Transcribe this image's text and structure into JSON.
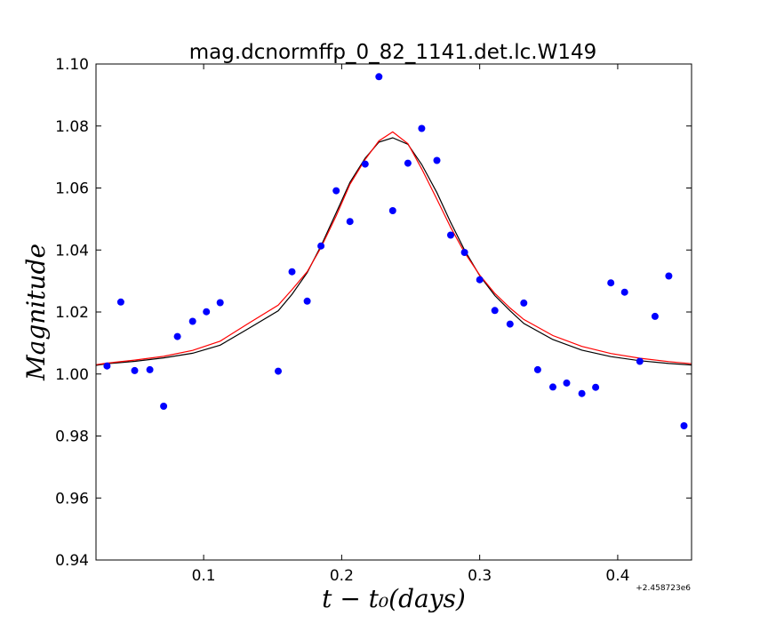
{
  "chart_data": {
    "type": "scatter",
    "title": "mag.dcnormffp_0_82_1141.det.lc.W149",
    "xlabel": "t − t₀(days)",
    "ylabel": "Magnitude",
    "x_offset_label": "+2.458723e6",
    "xlim": [
      0.022,
      0.4535
    ],
    "ylim": [
      0.94,
      1.1
    ],
    "xticks": [
      0.1,
      0.2,
      0.3,
      0.4
    ],
    "xtick_labels": [
      "0.1",
      "0.2",
      "0.3",
      "0.4"
    ],
    "yticks": [
      0.94,
      0.96,
      0.98,
      1.0,
      1.02,
      1.04,
      1.06,
      1.08,
      1.1
    ],
    "ytick_labels": [
      "0.94",
      "0.96",
      "0.98",
      "1.00",
      "1.02",
      "1.04",
      "1.06",
      "1.08",
      "1.10"
    ],
    "grid": false,
    "points": {
      "color": "#0000ff",
      "x": [
        0.03,
        0.04,
        0.05,
        0.061,
        0.071,
        0.081,
        0.092,
        0.102,
        0.112,
        0.154,
        0.164,
        0.175,
        0.185,
        0.196,
        0.206,
        0.217,
        0.227,
        0.237,
        0.248,
        0.258,
        0.269,
        0.279,
        0.289,
        0.3,
        0.311,
        0.322,
        0.332,
        0.342,
        0.353,
        0.363,
        0.374,
        0.384,
        0.395,
        0.405,
        0.416,
        0.427,
        0.437,
        0.448
      ],
      "y": [
        1.0026,
        1.0232,
        1.0011,
        1.0014,
        0.9896,
        1.0121,
        1.017,
        1.0201,
        1.023,
        1.0009,
        1.033,
        1.0235,
        1.0413,
        1.0591,
        1.0492,
        1.0677,
        1.0959,
        1.0527,
        1.068,
        1.0792,
        1.0689,
        1.0448,
        1.0392,
        1.0304,
        1.0205,
        1.0161,
        1.0229,
        1.0014,
        0.9958,
        0.9971,
        0.9937,
        0.9957,
        1.0294,
        1.0264,
        1.0041,
        1.0186,
        1.0316,
        0.9833
      ]
    },
    "series": [
      {
        "color": "#000000",
        "x": [
          0.022,
          0.03,
          0.05,
          0.071,
          0.092,
          0.112,
          0.133,
          0.154,
          0.164,
          0.175,
          0.185,
          0.196,
          0.206,
          0.217,
          0.227,
          0.237,
          0.248,
          0.258,
          0.269,
          0.279,
          0.289,
          0.3,
          0.311,
          0.322,
          0.332,
          0.353,
          0.374,
          0.395,
          0.416,
          0.437,
          0.4535
        ],
        "y": [
          1.0028,
          1.0033,
          1.0041,
          1.0052,
          1.0067,
          1.0093,
          1.0148,
          1.0204,
          1.0257,
          1.0327,
          1.0413,
          1.052,
          1.0618,
          1.0696,
          1.0748,
          1.0762,
          1.0741,
          1.0676,
          1.0585,
          1.0489,
          1.04,
          1.0317,
          1.0253,
          1.0204,
          1.0163,
          1.0111,
          1.0077,
          1.0056,
          1.0043,
          1.0034,
          1.0029
        ]
      },
      {
        "color": "#ff0000",
        "x": [
          0.022,
          0.03,
          0.05,
          0.071,
          0.092,
          0.112,
          0.133,
          0.154,
          0.164,
          0.175,
          0.185,
          0.196,
          0.206,
          0.217,
          0.227,
          0.237,
          0.248,
          0.258,
          0.269,
          0.279,
          0.289,
          0.3,
          0.311,
          0.322,
          0.332,
          0.353,
          0.374,
          0.395,
          0.416,
          0.437,
          0.4535
        ],
        "y": [
          1.003,
          1.0035,
          1.0045,
          1.0057,
          1.0076,
          1.0106,
          1.0165,
          1.0222,
          1.0272,
          1.033,
          1.0408,
          1.051,
          1.0612,
          1.0692,
          1.0752,
          1.0781,
          1.0743,
          1.0662,
          1.0564,
          1.0473,
          1.0392,
          1.0319,
          1.026,
          1.0213,
          1.0176,
          1.0124,
          1.0089,
          1.0066,
          1.0051,
          1.004,
          1.0033
        ]
      }
    ]
  }
}
